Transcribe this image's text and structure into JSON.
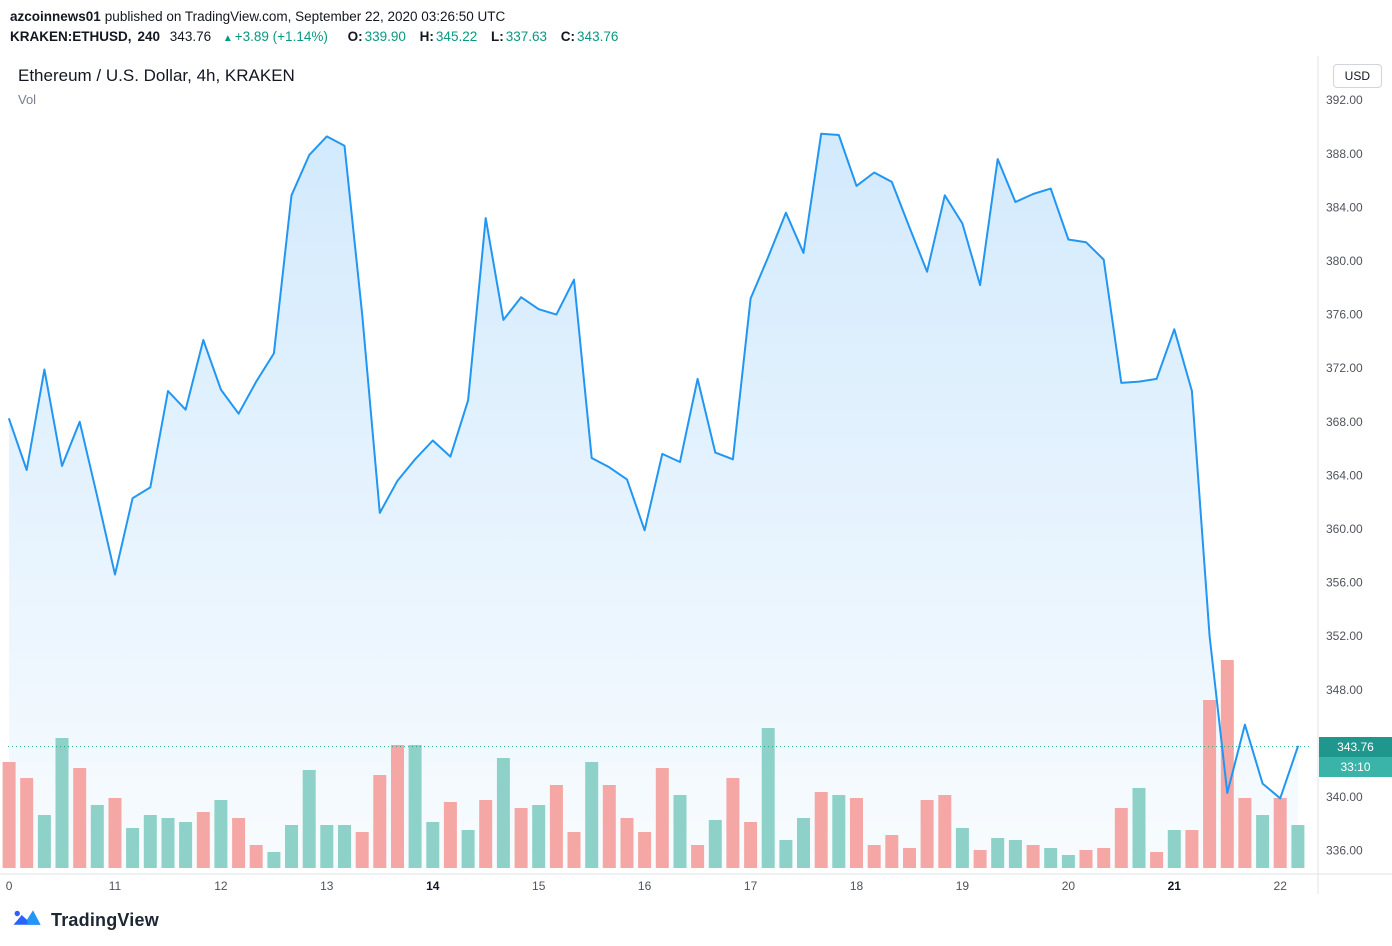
{
  "header": {
    "author": "azcoinnews01",
    "published": "published on TradingView.com, September 22, 2020 03:26:50 UTC",
    "symbol": "KRAKEN:ETHUSD,",
    "interval": "240",
    "last": "343.76",
    "arrow": "▲",
    "change": "+3.89 (+1.14%)",
    "ohlc": [
      {
        "label": "O:",
        "value": "339.90"
      },
      {
        "label": "H:",
        "value": "345.22"
      },
      {
        "label": "L:",
        "value": "337.63"
      },
      {
        "label": "C:",
        "value": "343.76"
      }
    ]
  },
  "chart": {
    "title": "Ethereum / U.S. Dollar, 4h, KRAKEN",
    "vol_label": "Vol",
    "currency_badge": "USD",
    "price_badge": "343.76",
    "countdown_badge": "33:10"
  },
  "footer": {
    "logo_text": "TradingView"
  },
  "chart_data": {
    "type": "area",
    "title": "Ethereum / U.S. Dollar, 4h, KRAKEN",
    "symbol": "KRAKEN:ETHUSD",
    "interval": "4h",
    "x_unit": "day of September 2020",
    "x_start": 10.0,
    "x_step": 0.1666667,
    "xlim": [
      9.99,
      22.3
    ],
    "ylim": [
      334.7,
      394.7
    ],
    "last_price": 343.76,
    "close": [
      368.2,
      364.4,
      371.9,
      364.7,
      368.0,
      362.4,
      356.6,
      362.3,
      363.1,
      370.3,
      368.9,
      374.1,
      370.4,
      368.6,
      371.0,
      373.1,
      384.9,
      387.9,
      389.3,
      388.6,
      376.0,
      361.2,
      363.6,
      365.2,
      366.6,
      365.4,
      369.6,
      383.2,
      375.6,
      377.3,
      376.4,
      376.0,
      378.6,
      365.3,
      364.6,
      363.7,
      359.9,
      365.6,
      365.0,
      371.2,
      365.7,
      365.2,
      377.2,
      380.3,
      383.6,
      380.6,
      389.5,
      389.4,
      385.6,
      386.6,
      385.9,
      382.5,
      379.2,
      384.9,
      382.8,
      378.2,
      387.6,
      384.4,
      385.0,
      385.4,
      381.6,
      381.4,
      380.1,
      370.9,
      371.0,
      371.2,
      374.9,
      370.3,
      352.0,
      340.3,
      345.4,
      341.0,
      339.9,
      343.76
    ],
    "volume_rel": [
      106,
      90,
      53,
      130,
      100,
      63,
      70,
      40,
      53,
      50,
      46,
      56,
      68,
      50,
      23,
      16,
      43,
      98,
      43,
      43,
      36,
      93,
      123,
      123,
      46,
      66,
      38,
      68,
      110,
      60,
      63,
      83,
      36,
      106,
      83,
      50,
      36,
      100,
      73,
      23,
      48,
      90,
      46,
      140,
      28,
      50,
      76,
      73,
      70,
      23,
      33,
      20,
      68,
      73,
      40,
      18,
      30,
      28,
      23,
      20,
      13,
      18,
      20,
      60,
      80,
      16,
      38,
      38,
      168,
      208,
      70,
      53,
      70,
      43
    ],
    "volume_dir": [
      "d",
      "d",
      "u",
      "u",
      "d",
      "u",
      "d",
      "u",
      "u",
      "u",
      "u",
      "d",
      "u",
      "d",
      "d",
      "u",
      "u",
      "u",
      "u",
      "u",
      "d",
      "d",
      "d",
      "u",
      "u",
      "d",
      "u",
      "d",
      "u",
      "d",
      "u",
      "d",
      "d",
      "u",
      "d",
      "d",
      "d",
      "d",
      "u",
      "d",
      "u",
      "d",
      "d",
      "u",
      "u",
      "u",
      "d",
      "u",
      "d",
      "d",
      "d",
      "d",
      "d",
      "d",
      "u",
      "d",
      "u",
      "u",
      "d",
      "u",
      "u",
      "d",
      "d",
      "d",
      "u",
      "d",
      "u",
      "d",
      "d",
      "d",
      "d",
      "u",
      "d",
      "u"
    ],
    "x_ticks": [
      {
        "label": "0",
        "day": 10
      },
      {
        "label": "11",
        "day": 11
      },
      {
        "label": "12",
        "day": 12
      },
      {
        "label": "13",
        "day": 13
      },
      {
        "label": "14",
        "day": 14,
        "bold": true
      },
      {
        "label": "15",
        "day": 15
      },
      {
        "label": "16",
        "day": 16
      },
      {
        "label": "17",
        "day": 17
      },
      {
        "label": "18",
        "day": 18
      },
      {
        "label": "19",
        "day": 19
      },
      {
        "label": "20",
        "day": 20
      },
      {
        "label": "21",
        "day": 21,
        "bold": true
      },
      {
        "label": "22",
        "day": 22
      }
    ],
    "y_ticks": [
      "392.00",
      "388.00",
      "384.00",
      "380.00",
      "376.00",
      "372.00",
      "368.00",
      "364.00",
      "360.00",
      "356.00",
      "352.00",
      "348.00",
      "344.00",
      "340.00",
      "336.00"
    ],
    "colors": {
      "line": "#2196f3",
      "area_top": "rgba(33,150,243,0.20)",
      "area_bottom": "rgba(33,150,243,0.03)",
      "vol_up": "#8ed1c8",
      "vol_down": "#f4a7a4",
      "axis_text": "#50535e",
      "grid_border": "#e0e3eb",
      "accent_teal": "#089981",
      "price_badge_bg": "#1f978c",
      "countdown_badge_bg": "#3ab3a9"
    },
    "legend_pos": "top-left",
    "grid": false
  }
}
